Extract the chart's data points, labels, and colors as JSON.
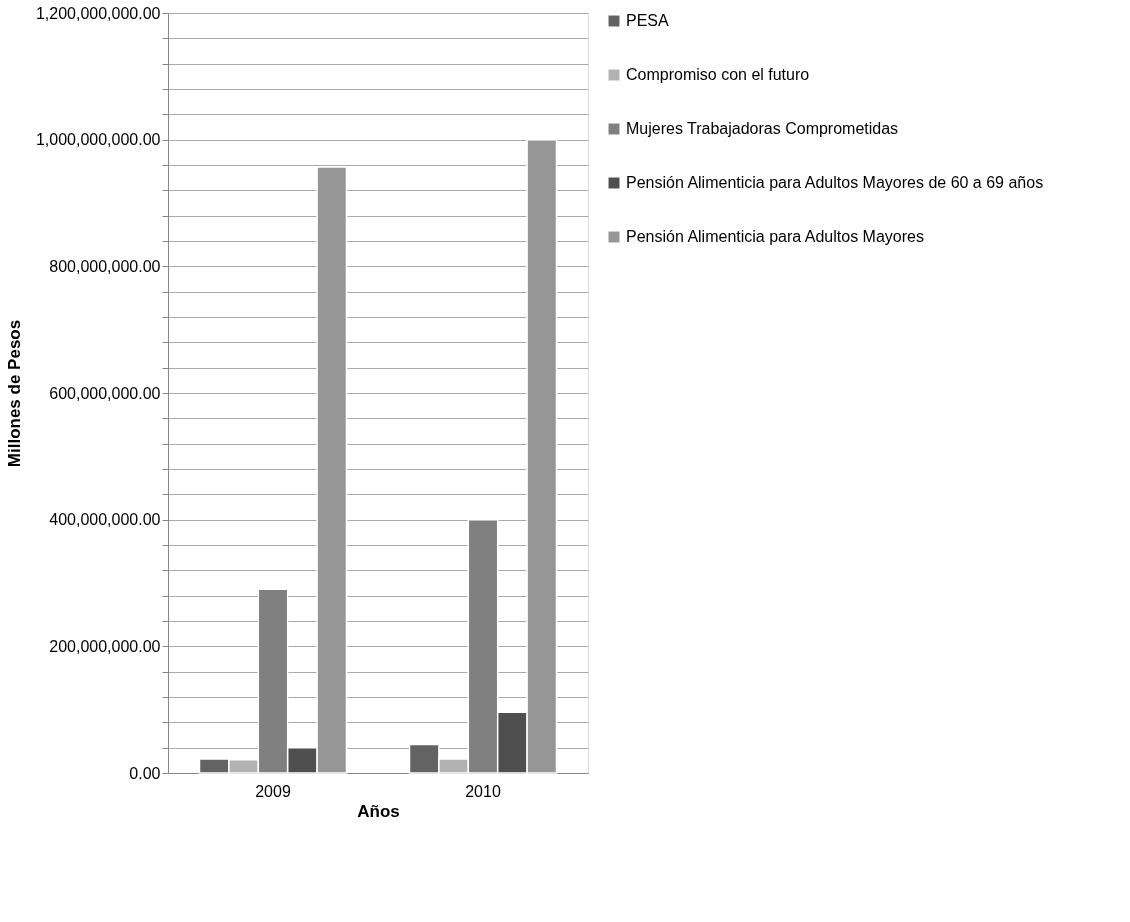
{
  "chart_data": {
    "type": "bar",
    "xlabel": "Años",
    "ylabel": "Millones de Pesos",
    "categories": [
      "2009",
      "2010"
    ],
    "series": [
      {
        "name": "PESA",
        "color": "#636363",
        "values": [
          22000000,
          45000000
        ]
      },
      {
        "name": "Compromiso con el futuro",
        "color": "#b2b2b2",
        "values": [
          21000000,
          22000000
        ]
      },
      {
        "name": "Mujeres Trabajadoras Comprometidas",
        "color": "#808080",
        "values": [
          290000000,
          400000000
        ]
      },
      {
        "name": "Pensión Alimenticia para Adultos Mayores de 60 a 69 años",
        "color": "#4f4f4f",
        "values": [
          40000000,
          96000000
        ]
      },
      {
        "name": "Pensión Alimenticia para Adultos Mayores",
        "color": "#969696",
        "values": [
          957000000,
          1000000000
        ]
      }
    ],
    "ylim": [
      0,
      1200000000
    ],
    "yticks": [
      {
        "value": 0,
        "label": "0.00"
      },
      {
        "value": 40000000,
        "label": null
      },
      {
        "value": 80000000,
        "label": null
      },
      {
        "value": 120000000,
        "label": null
      },
      {
        "value": 160000000,
        "label": null
      },
      {
        "value": 200000000,
        "label": "200,000,000.00"
      },
      {
        "value": 240000000,
        "label": null
      },
      {
        "value": 280000000,
        "label": null
      },
      {
        "value": 320000000,
        "label": null
      },
      {
        "value": 360000000,
        "label": null
      },
      {
        "value": 400000000,
        "label": "400,000,000.00"
      },
      {
        "value": 440000000,
        "label": null
      },
      {
        "value": 480000000,
        "label": null
      },
      {
        "value": 520000000,
        "label": null
      },
      {
        "value": 560000000,
        "label": null
      },
      {
        "value": 600000000,
        "label": "600,000,000.00"
      },
      {
        "value": 640000000,
        "label": null
      },
      {
        "value": 680000000,
        "label": null
      },
      {
        "value": 720000000,
        "label": null
      },
      {
        "value": 760000000,
        "label": null
      },
      {
        "value": 800000000,
        "label": "800,000,000.00"
      },
      {
        "value": 840000000,
        "label": null
      },
      {
        "value": 880000000,
        "label": null
      },
      {
        "value": 920000000,
        "label": null
      },
      {
        "value": 960000000,
        "label": null
      },
      {
        "value": 1000000000,
        "label": "1,000,000,000.00"
      },
      {
        "value": 1040000000,
        "label": null
      },
      {
        "value": 1080000000,
        "label": null
      },
      {
        "value": 1120000000,
        "label": null
      },
      {
        "value": 1160000000,
        "label": null
      },
      {
        "value": 1200000000,
        "label": "1,200,000,000.00"
      }
    ],
    "grid": "y",
    "legend": "right"
  }
}
